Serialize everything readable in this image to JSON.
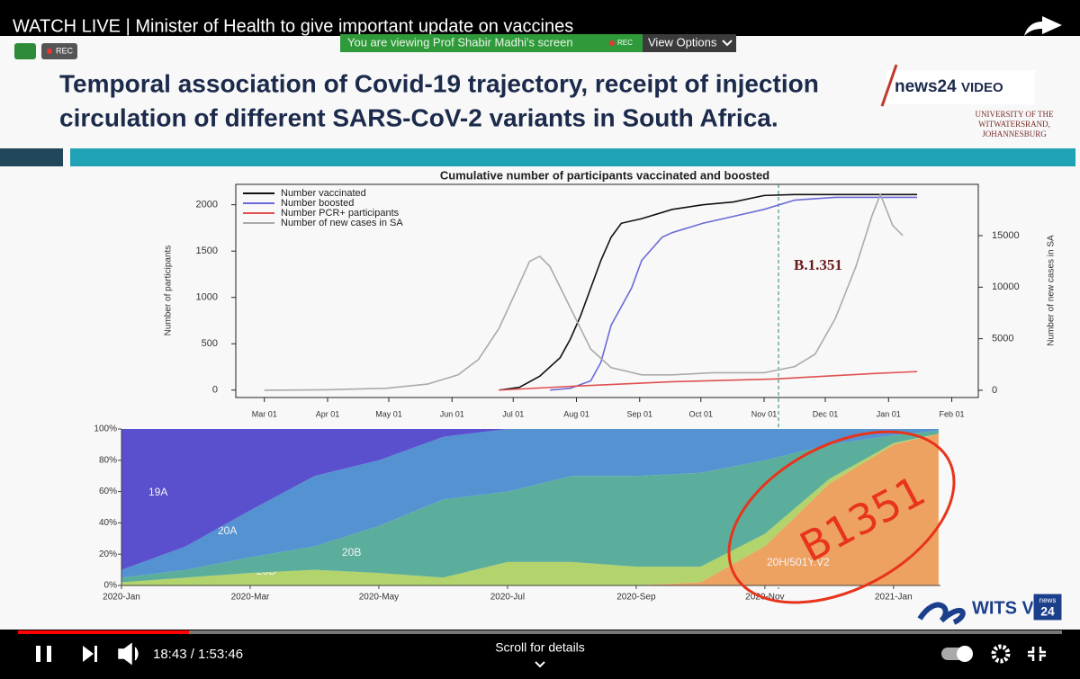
{
  "video": {
    "title": "WATCH LIVE | Minister of Health to give important update on vaccines",
    "time": "18:43 / 1:53:46",
    "scroll_hint": "Scroll for details"
  },
  "banner": {
    "text": "You are viewing Prof Shabir Madhi's screen",
    "rec": "REC",
    "view_options": "View Options"
  },
  "rec_badge": "REC",
  "slide": {
    "title_lines": [
      "Temporal association of Covid-19 trajectory, receipt of injection",
      "circulation of different SARS-CoV-2 variants in South Africa."
    ],
    "logo_news": "news24",
    "logo_video": "VIDEO",
    "university": [
      "UNIVERSITY OF THE",
      "WITWATERSRAND,",
      "JOHANNESBURG"
    ],
    "handwritten": "B1351",
    "wits_logo": "WITS V",
    "wits_badge": [
      "news",
      "24"
    ]
  },
  "chart_data": [
    {
      "type": "line",
      "title": "Cumulative number of participants vaccinated and boosted",
      "ylabel": "Number of participants",
      "y2label": "Number of new cases in SA",
      "annotation": "B.1.351",
      "xlim": [
        -14,
        350
      ],
      "xticks": [
        {
          "value": 0,
          "label": "Mar 01"
        },
        {
          "value": 31,
          "label": "Apr 01"
        },
        {
          "value": 61,
          "label": "May 01"
        },
        {
          "value": 92,
          "label": "Jun 01"
        },
        {
          "value": 122,
          "label": "Jul 01"
        },
        {
          "value": 153,
          "label": "Aug 01"
        },
        {
          "value": 184,
          "label": "Sep 01"
        },
        {
          "value": 214,
          "label": "Oct 01"
        },
        {
          "value": 245,
          "label": "Nov 01"
        },
        {
          "value": 275,
          "label": "Dec 01"
        },
        {
          "value": 306,
          "label": "Jan 01"
        },
        {
          "value": 337,
          "label": "Feb 01"
        }
      ],
      "ylim": [
        -80,
        2220
      ],
      "yticks": [
        0,
        500,
        1000,
        1500,
        2000
      ],
      "y2lim": [
        -700,
        19970
      ],
      "y2ticks": [
        0,
        5000,
        10000,
        15000
      ],
      "series": [
        {
          "name": "Number vaccinated",
          "color": "#111111",
          "x": [
            115,
            125,
            135,
            145,
            150,
            155,
            160,
            165,
            170,
            175,
            185,
            200,
            215,
            230,
            245,
            260,
            320
          ],
          "values": [
            0,
            30,
            150,
            350,
            550,
            800,
            1100,
            1400,
            1650,
            1800,
            1850,
            1950,
            2000,
            2030,
            2100,
            2110,
            2110
          ]
        },
        {
          "name": "Number boosted",
          "color": "#6a6ad8",
          "x": [
            140,
            150,
            160,
            165,
            170,
            180,
            185,
            195,
            200,
            215,
            235,
            245,
            260,
            280,
            320
          ],
          "values": [
            0,
            20,
            100,
            300,
            700,
            1100,
            1400,
            1650,
            1700,
            1800,
            1900,
            1950,
            2050,
            2080,
            2080
          ]
        },
        {
          "name": "Number PCR+ participants",
          "color": "#e05050",
          "x": [
            115,
            150,
            200,
            250,
            300,
            320
          ],
          "values": [
            0,
            40,
            90,
            120,
            180,
            200
          ]
        },
        {
          "name": "Number of new cases in SA",
          "color": "#aaaaaa",
          "axis": "y2",
          "x": [
            0,
            30,
            60,
            80,
            95,
            105,
            115,
            122,
            130,
            135,
            140,
            150,
            160,
            170,
            185,
            200,
            220,
            245,
            260,
            270,
            280,
            290,
            298,
            302,
            308,
            313
          ],
          "values": [
            0,
            50,
            200,
            600,
            1500,
            3000,
            6000,
            9000,
            12500,
            13000,
            12000,
            8000,
            4000,
            2200,
            1500,
            1500,
            1700,
            1700,
            2300,
            3500,
            7000,
            12000,
            17000,
            19000,
            16000,
            15000
          ]
        }
      ]
    },
    {
      "type": "area",
      "xlim": [
        0,
        12.73
      ],
      "xticks": [
        {
          "value": 0,
          "label": "2020-Jan"
        },
        {
          "value": 2,
          "label": "2020-Mar"
        },
        {
          "value": 4,
          "label": "2020-May"
        },
        {
          "value": 6,
          "label": "2020-Jul"
        },
        {
          "value": 8,
          "label": "2020-Sep"
        },
        {
          "value": 10,
          "label": "2020-Nov"
        },
        {
          "value": 12,
          "label": "2021-Jan"
        }
      ],
      "ylim": [
        0,
        100
      ],
      "yticks": [
        {
          "value": 0,
          "label": "0%"
        },
        {
          "value": 20,
          "label": "20%"
        },
        {
          "value": 40,
          "label": "40%"
        },
        {
          "value": 60,
          "label": "60%"
        },
        {
          "value": 80,
          "label": "80%"
        },
        {
          "value": 100,
          "label": "100%"
        }
      ],
      "x": [
        0,
        1,
        2,
        3,
        4,
        5,
        6,
        7,
        8,
        9,
        10,
        11,
        12,
        12.7
      ],
      "series": [
        {
          "name": "20H/501Y.V2",
          "color": "#eea262",
          "values": [
            0,
            0,
            0,
            0,
            0,
            0,
            0,
            0,
            0,
            2,
            25,
            65,
            90,
            97
          ]
        },
        {
          "name": "20D",
          "color": "#b3d36c",
          "values": [
            2,
            5,
            8,
            10,
            8,
            5,
            15,
            15,
            12,
            10,
            8,
            3,
            1,
            0
          ]
        },
        {
          "name": "20B",
          "color": "#5cae9c",
          "values": [
            3,
            5,
            10,
            15,
            30,
            50,
            45,
            55,
            58,
            60,
            47,
            22,
            5,
            2
          ]
        },
        {
          "name": "20A",
          "color": "#5592d2",
          "values": [
            5,
            15,
            30,
            45,
            42,
            40,
            40,
            30,
            30,
            28,
            20,
            10,
            4,
            1
          ]
        },
        {
          "name": "19A",
          "color": "#5a4fcc",
          "values": [
            90,
            75,
            52,
            30,
            20,
            5,
            0,
            0,
            0,
            0,
            0,
            0,
            0,
            0
          ]
        }
      ]
    }
  ]
}
